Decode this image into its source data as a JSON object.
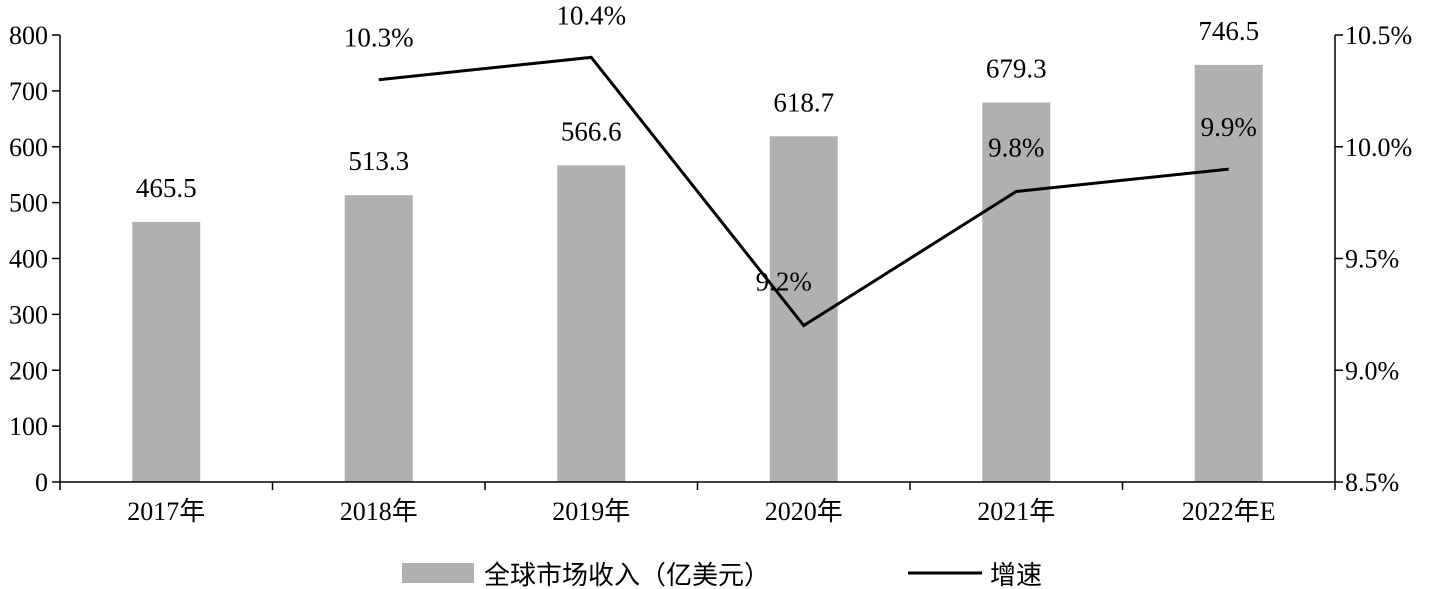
{
  "chart_data": {
    "type": "bar",
    "title": "",
    "xlabel": "",
    "ylabel": "",
    "categories": [
      "2017年",
      "2018年",
      "2019年",
      "2020年",
      "2021年",
      "2022年E"
    ],
    "series": [
      {
        "name": "全球市场收入（亿美元）",
        "type": "bar",
        "axis": "left",
        "color": "#b0b0b0",
        "values": [
          465.5,
          513.3,
          566.6,
          618.7,
          679.3,
          746.5
        ],
        "labels": [
          "465.5",
          "513.3",
          "566.6",
          "618.7",
          "679.3",
          "746.5"
        ]
      },
      {
        "name": "增速",
        "type": "line",
        "axis": "right",
        "color": "#000000",
        "values": [
          null,
          10.3,
          10.4,
          9.2,
          9.8,
          9.9
        ],
        "labels": [
          "",
          "10.3%",
          "10.4%",
          "9.2%",
          "9.8%",
          "9.9%"
        ]
      }
    ],
    "ylim": [
      0,
      800
    ],
    "yticks": [
      0,
      100,
      200,
      300,
      400,
      500,
      600,
      700,
      800
    ],
    "y2lim": [
      8.5,
      10.5
    ],
    "y2ticks": [
      "8.5%",
      "9.0%",
      "9.5%",
      "10.0%",
      "10.5%"
    ],
    "y2tick_values": [
      8.5,
      9.0,
      9.5,
      10.0,
      10.5
    ],
    "grid": false,
    "legend_position": "bottom"
  }
}
